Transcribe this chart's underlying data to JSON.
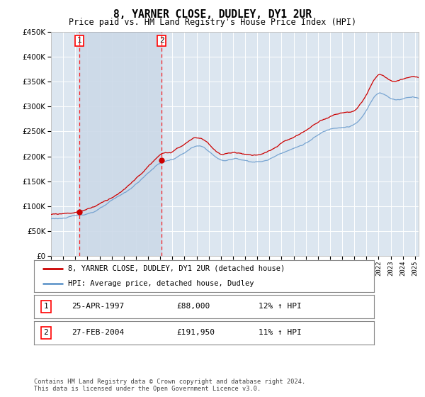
{
  "title": "8, YARNER CLOSE, DUDLEY, DY1 2UR",
  "subtitle": "Price paid vs. HM Land Registry's House Price Index (HPI)",
  "ylim": [
    0,
    450000
  ],
  "yticks": [
    0,
    50000,
    100000,
    150000,
    200000,
    250000,
    300000,
    350000,
    400000,
    450000
  ],
  "xlim_start": 1995.0,
  "xlim_end": 2025.3,
  "background_color": "#ffffff",
  "plot_bg_color": "#dce6f0",
  "grid_color": "#ffffff",
  "hpi_color": "#6699cc",
  "property_color": "#cc0000",
  "span_color": "#ccd9e8",
  "transactions": [
    {
      "id": 1,
      "date": "25-APR-1997",
      "year": 1997.32,
      "price": 88000,
      "pct": "12%",
      "dir": "↑"
    },
    {
      "id": 2,
      "date": "27-FEB-2004",
      "year": 2004.12,
      "price": 191950,
      "pct": "11%",
      "dir": "↑"
    }
  ],
  "legend_label_property": "8, YARNER CLOSE, DUDLEY, DY1 2UR (detached house)",
  "legend_label_hpi": "HPI: Average price, detached house, Dudley",
  "footer": "Contains HM Land Registry data © Crown copyright and database right 2024.\nThis data is licensed under the Open Government Licence v3.0."
}
